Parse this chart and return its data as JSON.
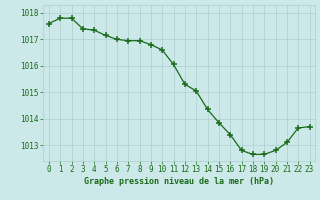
{
  "x": [
    0,
    1,
    2,
    3,
    4,
    5,
    6,
    7,
    8,
    9,
    10,
    11,
    12,
    13,
    14,
    15,
    16,
    17,
    18,
    19,
    20,
    21,
    22,
    23
  ],
  "y": [
    1017.6,
    1017.8,
    1017.8,
    1017.4,
    1017.35,
    1017.15,
    1017.0,
    1016.95,
    1016.95,
    1016.8,
    1016.6,
    1016.05,
    1015.3,
    1015.05,
    1014.35,
    1013.85,
    1013.4,
    1012.8,
    1012.65,
    1012.65,
    1012.8,
    1013.1,
    1013.65,
    1013.7
  ],
  "line_color": "#1a6b1a",
  "marker": "+",
  "marker_color": "#1a6b1a",
  "bg_color": "#cce8e8",
  "grid_color": "#aacfcf",
  "xlabel": "Graphe pression niveau de la mer (hPa)",
  "xlabel_color": "#1a6b1a",
  "tick_color": "#1a6b1a",
  "ylim": [
    1012.4,
    1018.3
  ],
  "xlim": [
    -0.5,
    23.5
  ],
  "yticks": [
    1013,
    1014,
    1015,
    1016,
    1017,
    1018
  ],
  "xticks": [
    0,
    1,
    2,
    3,
    4,
    5,
    6,
    7,
    8,
    9,
    10,
    11,
    12,
    13,
    14,
    15,
    16,
    17,
    18,
    19,
    20,
    21,
    22,
    23
  ],
  "xtick_labels": [
    "0",
    "1",
    "2",
    "3",
    "4",
    "5",
    "6",
    "7",
    "8",
    "9",
    "10",
    "11",
    "12",
    "13",
    "14",
    "15",
    "16",
    "17",
    "18",
    "19",
    "20",
    "21",
    "22",
    "23"
  ]
}
